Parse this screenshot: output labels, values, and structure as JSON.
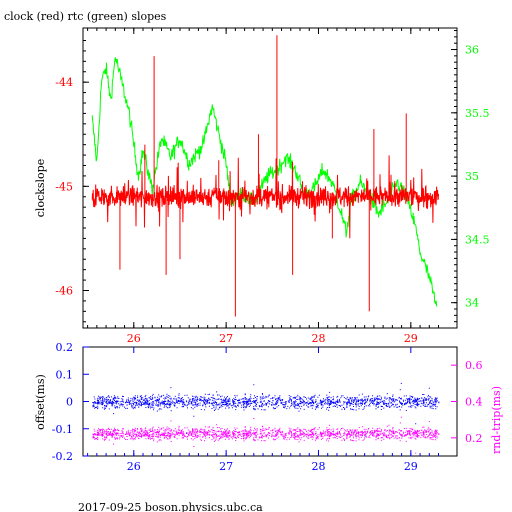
{
  "title": "clock (red) rtc (green) slopes",
  "footer": "2017-09-25  boson.physics.ubc.ca",
  "colors": {
    "clock": "#ff0000",
    "rtc": "#00ff00",
    "offset": "#0000ff",
    "roundtrip": "#ff00ff",
    "frame": "#000000"
  },
  "chart_data": [
    {
      "type": "line",
      "title": "clock (red) rtc (green) slopes",
      "ylabel": "clockslope",
      "xlim": [
        25.45,
        29.5
      ],
      "ylim_left": [
        -46.36,
        -43.48
      ],
      "ylim_right": [
        33.8,
        36.17
      ],
      "x_ticks": [
        "26",
        "27",
        "28",
        "29"
      ],
      "x_tick_values": [
        26,
        27,
        28,
        29
      ],
      "y_left_ticks": [
        "-44",
        "-45",
        "-46"
      ],
      "y_left_tick_values": [
        -44,
        -45,
        -46
      ],
      "y_right_ticks": [
        "36",
        "35.5",
        "35",
        "34.5",
        "34"
      ],
      "y_right_tick_values": [
        36,
        35.5,
        35,
        34.5,
        34
      ],
      "series": [
        {
          "name": "clock",
          "axis": "left",
          "baseline": -45.1,
          "noise": 0.1,
          "x_range": [
            25.55,
            29.3
          ],
          "spikes": [
            {
              "x": 25.85,
              "y": -45.8
            },
            {
              "x": 26.12,
              "y": -44.6
            },
            {
              "x": 26.22,
              "y": -43.75
            },
            {
              "x": 26.35,
              "y": -45.85
            },
            {
              "x": 26.5,
              "y": -45.7
            },
            {
              "x": 26.92,
              "y": -44.75
            },
            {
              "x": 27.1,
              "y": -46.25
            },
            {
              "x": 27.35,
              "y": -44.5
            },
            {
              "x": 27.55,
              "y": -43.55
            },
            {
              "x": 27.72,
              "y": -45.85
            },
            {
              "x": 28.15,
              "y": -45.5
            },
            {
              "x": 28.55,
              "y": -46.2
            },
            {
              "x": 28.6,
              "y": -44.45
            },
            {
              "x": 28.95,
              "y": -44.3
            }
          ]
        },
        {
          "name": "rtc",
          "axis": "right",
          "points": [
            [
              25.55,
              35.45
            ],
            [
              25.6,
              35.1
            ],
            [
              25.65,
              35.75
            ],
            [
              25.7,
              35.85
            ],
            [
              25.75,
              35.6
            ],
            [
              25.8,
              35.95
            ],
            [
              25.85,
              35.8
            ],
            [
              25.9,
              35.65
            ],
            [
              25.95,
              35.5
            ],
            [
              26.0,
              35.25
            ],
            [
              26.05,
              35.0
            ],
            [
              26.1,
              35.2
            ],
            [
              26.15,
              35.05
            ],
            [
              26.2,
              34.9
            ],
            [
              26.3,
              35.3
            ],
            [
              26.4,
              35.15
            ],
            [
              26.5,
              35.3
            ],
            [
              26.6,
              35.1
            ],
            [
              26.7,
              35.2
            ],
            [
              26.75,
              35.25
            ],
            [
              26.8,
              35.4
            ],
            [
              26.85,
              35.55
            ],
            [
              26.9,
              35.4
            ],
            [
              26.95,
              35.25
            ],
            [
              27.0,
              35.1
            ],
            [
              27.05,
              34.8
            ],
            [
              27.1,
              34.85
            ],
            [
              27.2,
              34.85
            ],
            [
              27.3,
              34.8
            ],
            [
              27.45,
              35.0
            ],
            [
              27.55,
              35.05
            ],
            [
              27.65,
              35.15
            ],
            [
              27.75,
              35.05
            ],
            [
              27.85,
              34.85
            ],
            [
              27.95,
              34.9
            ],
            [
              28.05,
              35.05
            ],
            [
              28.15,
              34.95
            ],
            [
              28.25,
              34.7
            ],
            [
              28.3,
              34.55
            ],
            [
              28.35,
              34.8
            ],
            [
              28.45,
              34.95
            ],
            [
              28.55,
              34.85
            ],
            [
              28.65,
              34.7
            ],
            [
              28.75,
              34.8
            ],
            [
              28.85,
              34.95
            ],
            [
              28.95,
              34.85
            ],
            [
              29.05,
              34.6
            ],
            [
              29.1,
              34.4
            ],
            [
              29.15,
              34.3
            ],
            [
              29.2,
              34.2
            ],
            [
              29.25,
              34.05
            ],
            [
              29.28,
              33.95
            ]
          ]
        }
      ]
    },
    {
      "type": "scatter",
      "ylabel_left": "offset(ms)",
      "ylabel_right": "rnd-trip(ms)",
      "xlim": [
        25.45,
        29.5
      ],
      "ylim_left": [
        -0.2,
        0.2
      ],
      "ylim_right": [
        0.1,
        0.7
      ],
      "x_ticks": [
        "26",
        "27",
        "28",
        "29"
      ],
      "x_tick_values": [
        26,
        27,
        28,
        29
      ],
      "y_left_ticks": [
        "0.2",
        "0.1",
        "0",
        "-0.1",
        "-0.2"
      ],
      "y_left_tick_values": [
        0.2,
        0.1,
        0,
        -0.1,
        -0.2
      ],
      "y_right_ticks": [
        "0.6",
        "0.4",
        "0.2"
      ],
      "y_right_tick_values": [
        0.6,
        0.4,
        0.2
      ],
      "series": [
        {
          "name": "offset",
          "axis": "left",
          "center": 0.0,
          "spread": 0.045,
          "x_range": [
            25.55,
            29.3
          ]
        },
        {
          "name": "roundtrip",
          "axis": "right",
          "center": 0.225,
          "spread": 0.06,
          "x_range": [
            25.55,
            29.3
          ]
        }
      ]
    }
  ]
}
